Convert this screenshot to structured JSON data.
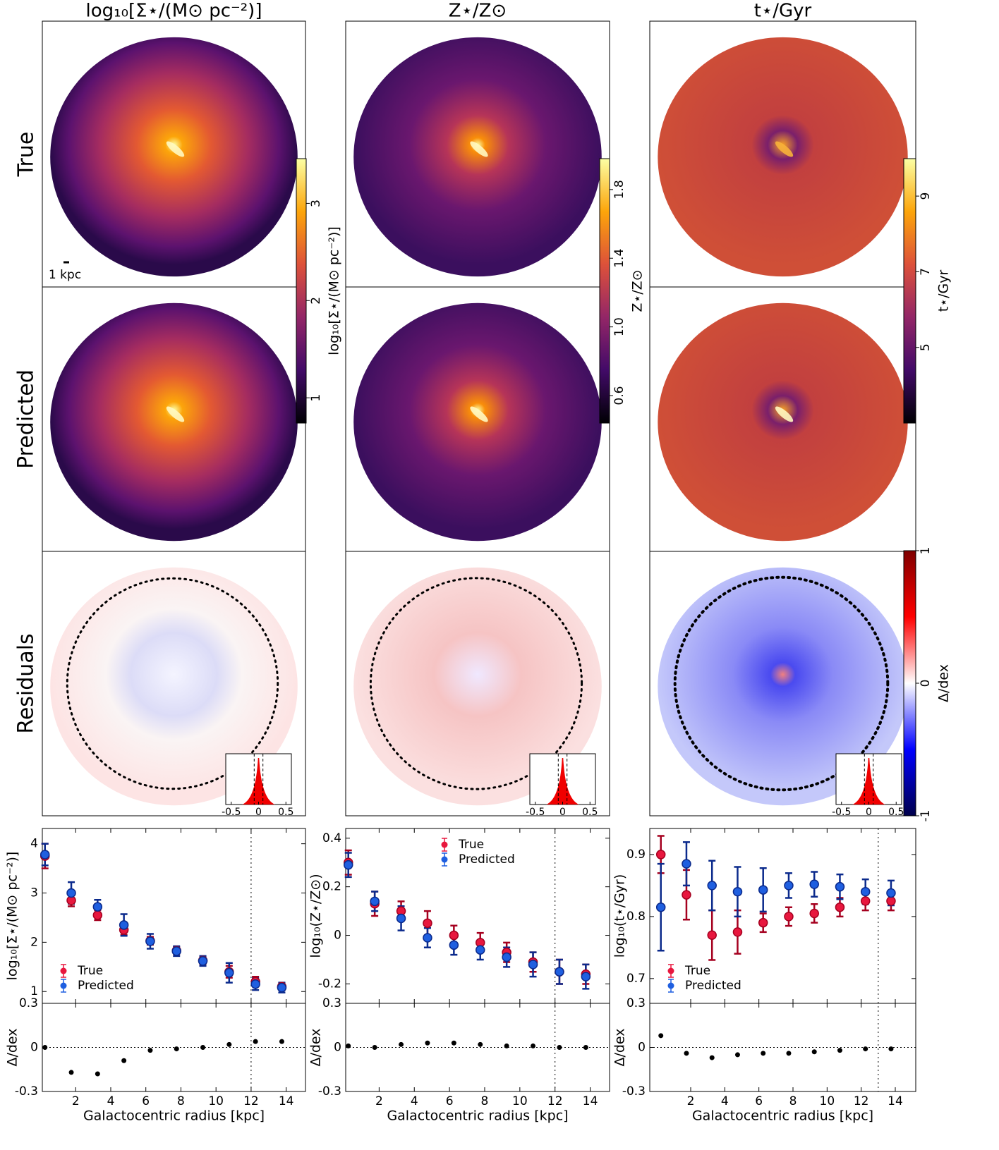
{
  "column_titles": [
    "log₁₀[Σ⋆/(M⊙ pc⁻²)]",
    "Z⋆/Z⊙",
    "t⋆/Gyr"
  ],
  "row_labels": [
    "True",
    "Predicted",
    "Residuals"
  ],
  "scale_bar": "1 kpc",
  "colorbars": [
    {
      "label": "log₁₀[Σ⋆/(M⊙ pc⁻²)]",
      "lim": [
        0.74,
        3.46
      ],
      "ticks": [
        1,
        2,
        3
      ]
    },
    {
      "label": "Z⋆/Z⊙",
      "lim": [
        0.44,
        1.98
      ],
      "ticks": [
        0.6,
        {
          "value": 1,
          "label": "1.0"
        },
        1.4,
        1.8
      ]
    },
    {
      "label": "t⋆/Gyr",
      "lim": [
        3.0,
        9.99
      ],
      "ticks": [
        5,
        7,
        9
      ]
    },
    {
      "label": "Δ/dex",
      "lim": [
        -1,
        1
      ],
      "ticks": [
        -1,
        0,
        1
      ]
    }
  ],
  "inset_xticks": [
    -0.5,
    0,
    0.5
  ],
  "chart_data": [
    {
      "type": "errorbar",
      "ylabel": "log₁₀[Σ⋆/(M⊙ pc⁻²)]",
      "xlabel": "Galactocentric radius [kpc]",
      "x": [
        0.25,
        1.75,
        3.25,
        4.75,
        6.25,
        7.75,
        9.25,
        10.75,
        12.25,
        13.75
      ],
      "xlim": [
        0.1,
        15.1
      ],
      "xticks": [
        2,
        4,
        6,
        8,
        10,
        12,
        14
      ],
      "ylim": [
        0.76,
        4.31
      ],
      "yticks": [
        1,
        2,
        3,
        4
      ],
      "vline": 12,
      "legend": "lower left",
      "series": [
        {
          "name": "True",
          "color": "#e8173e",
          "values": [
            3.75,
            2.85,
            2.55,
            2.25,
            2.03,
            1.83,
            1.63,
            1.4,
            1.2,
            1.1
          ],
          "errors": [
            0.25,
            0.12,
            0.1,
            0.1,
            0.08,
            0.07,
            0.08,
            0.12,
            0.1,
            0.07
          ]
        },
        {
          "name": "Predicted",
          "color": "#1f5fe0",
          "values": [
            3.78,
            3.0,
            2.72,
            2.35,
            2.02,
            1.82,
            1.62,
            1.38,
            1.15,
            1.08
          ],
          "errors": [
            0.22,
            0.22,
            0.14,
            0.22,
            0.15,
            0.1,
            0.1,
            0.2,
            0.12,
            0.1
          ]
        }
      ],
      "residuals": {
        "ylabel": "Δ/dex",
        "ylim": [
          -0.3,
          0.3
        ],
        "yticks": [
          -0.3,
          0,
          0.3
        ],
        "values": [
          0.0,
          -0.17,
          -0.18,
          -0.09,
          -0.02,
          -0.01,
          0.0,
          0.02,
          0.04,
          0.04
        ]
      }
    },
    {
      "type": "errorbar",
      "ylabel": "log₁₀(Z⋆/Z⊙)",
      "xlabel": "Galactocentric radius [kpc]",
      "x": [
        0.25,
        1.75,
        3.25,
        4.75,
        6.25,
        7.75,
        9.25,
        10.75,
        12.25,
        13.75
      ],
      "xlim": [
        0.1,
        15.1
      ],
      "xticks": [
        2,
        4,
        6,
        8,
        10,
        12,
        14
      ],
      "ylim": [
        -0.28,
        0.44
      ],
      "yticks": [
        -0.2,
        0,
        0.2,
        0.4
      ],
      "vline": 12,
      "legend": "upper center",
      "series": [
        {
          "name": "True",
          "color": "#e8173e",
          "values": [
            0.3,
            0.13,
            0.1,
            0.05,
            0.0,
            -0.03,
            -0.07,
            -0.11,
            -0.15,
            -0.16
          ],
          "errors": [
            0.05,
            0.05,
            0.04,
            0.05,
            0.04,
            0.04,
            0.04,
            0.04,
            0.05,
            0.04
          ]
        },
        {
          "name": "Predicted",
          "color": "#1f5fe0",
          "values": [
            0.29,
            0.14,
            0.07,
            -0.01,
            -0.04,
            -0.06,
            -0.09,
            -0.12,
            -0.15,
            -0.17
          ],
          "errors": [
            0.05,
            0.04,
            0.05,
            0.04,
            0.04,
            0.04,
            0.04,
            0.05,
            0.05,
            0.05
          ]
        }
      ],
      "residuals": {
        "ylabel": "Δ/dex",
        "ylim": [
          -0.3,
          0.3
        ],
        "yticks": [
          -0.3,
          0,
          0.3
        ],
        "values": [
          0.01,
          0.0,
          0.02,
          0.03,
          0.03,
          0.02,
          0.01,
          0.01,
          0.0,
          0.0
        ]
      }
    },
    {
      "type": "errorbar",
      "ylabel": "log₁₀(t⋆/Gyr)",
      "xlabel": "Galactocentric radius [kpc]",
      "x": [
        0.25,
        1.75,
        3.25,
        4.75,
        6.25,
        7.75,
        9.25,
        10.75,
        12.25,
        13.75
      ],
      "xlim": [
        -0.4,
        15.2
      ],
      "xticks": [
        2,
        4,
        6,
        8,
        10,
        12,
        14
      ],
      "ylim": [
        0.66,
        0.942
      ],
      "yticks": [
        0.7,
        0.8,
        0.9
      ],
      "vline": 13,
      "legend": "lower left",
      "series": [
        {
          "name": "True",
          "color": "#e8173e",
          "values": [
            0.9,
            0.835,
            0.77,
            0.775,
            0.79,
            0.8,
            0.805,
            0.815,
            0.825,
            0.825
          ],
          "errors": [
            0.03,
            0.04,
            0.04,
            0.035,
            0.015,
            0.015,
            0.015,
            0.015,
            0.015,
            0.015
          ]
        },
        {
          "name": "Predicted",
          "color": "#1f5fe0",
          "values": [
            0.815,
            0.885,
            0.85,
            0.84,
            0.843,
            0.85,
            0.852,
            0.848,
            0.84,
            0.838
          ],
          "errors": [
            0.07,
            0.035,
            0.04,
            0.04,
            0.035,
            0.02,
            0.02,
            0.02,
            0.02,
            0.02
          ]
        }
      ],
      "residuals": {
        "ylabel": "Δ/dex",
        "ylim": [
          -0.3,
          0.3
        ],
        "yticks": [
          -0.3,
          0,
          0.3
        ],
        "values": [
          0.08,
          -0.04,
          -0.07,
          -0.05,
          -0.04,
          -0.04,
          -0.03,
          -0.02,
          -0.01,
          -0.01
        ]
      }
    }
  ]
}
